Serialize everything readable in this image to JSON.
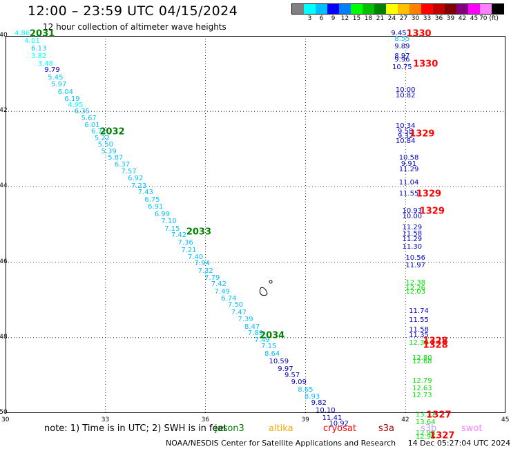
{
  "header": {
    "title": "12:00 – 23:59 UTC 04/15/2024",
    "subtitle": "12 hour collection of altimeter wave heights"
  },
  "colorbar": {
    "colors": [
      "#808080",
      "#00ffff",
      "#00bfff",
      "#0000ff",
      "#0080ff",
      "#00ff00",
      "#00c000",
      "#008000",
      "#ffff00",
      "#ffc000",
      "#ff8000",
      "#ff0000",
      "#c00000",
      "#800000",
      "#800080",
      "#ff00ff",
      "#ff80ff",
      "#000000"
    ],
    "labels": [
      "3",
      "6",
      "9",
      "12",
      "15",
      "18",
      "21",
      "24",
      "27",
      "30",
      "33",
      "36",
      "39",
      "42",
      "45",
      "70 (ft)"
    ]
  },
  "chart_data": {
    "type": "scatter",
    "title": "12:00 – 23:59 UTC 04/15/2024",
    "subtitle": "12 hour collection of altimeter wave heights",
    "xlim": [
      30,
      45
    ],
    "ylim": [
      -50,
      -40
    ],
    "x_ticks": [
      "30",
      "33",
      "36",
      "39",
      "42",
      "45"
    ],
    "y_ticks": [
      "-40",
      "-42",
      "-44",
      "-46",
      "-48",
      "-50"
    ],
    "grid": true,
    "series": [
      {
        "name": "jason3",
        "color": "#008000",
        "tracks": [
          {
            "label": "2031",
            "x": 31.1,
            "y": -39.95
          },
          {
            "label": "2032",
            "x": 33.2,
            "y": -42.55
          },
          {
            "label": "2033",
            "x": 35.8,
            "y": -45.2
          },
          {
            "label": "2034",
            "x": 38.0,
            "y": -47.95
          }
        ],
        "points": [
          {
            "x": 30.5,
            "y": -39.95,
            "v": "4.86",
            "c": "#00ffff"
          },
          {
            "x": 30.8,
            "y": -40.15,
            "v": "4.01",
            "c": "#00ffff"
          },
          {
            "x": 31.0,
            "y": -40.35,
            "v": "6.13",
            "c": "#00bfff"
          },
          {
            "x": 31.0,
            "y": -40.55,
            "v": "3.82",
            "c": "#00ffff"
          },
          {
            "x": 31.2,
            "y": -40.75,
            "v": "3.48",
            "c": "#00ffff"
          },
          {
            "x": 31.4,
            "y": -40.92,
            "v": "9.79",
            "c": "#0000c0"
          },
          {
            "x": 31.5,
            "y": -41.12,
            "v": "5.45",
            "c": "#00bfff"
          },
          {
            "x": 31.6,
            "y": -41.3,
            "v": "5.97",
            "c": "#00bfff"
          },
          {
            "x": 31.8,
            "y": -41.5,
            "v": "6.04",
            "c": "#00bfff"
          },
          {
            "x": 32.0,
            "y": -41.68,
            "v": "6.19",
            "c": "#00bfff"
          },
          {
            "x": 32.1,
            "y": -41.85,
            "v": "4.95",
            "c": "#00ffff"
          },
          {
            "x": 32.3,
            "y": -42.02,
            "v": "6.35",
            "c": "#00bfff"
          },
          {
            "x": 32.5,
            "y": -42.2,
            "v": "5.67",
            "c": "#00bfff"
          },
          {
            "x": 32.6,
            "y": -42.38,
            "v": "6.01",
            "c": "#00bfff"
          },
          {
            "x": 32.8,
            "y": -42.55,
            "v": "6.71",
            "c": "#00bfff"
          },
          {
            "x": 32.9,
            "y": -42.72,
            "v": "5.22",
            "c": "#00bfff"
          },
          {
            "x": 33.0,
            "y": -42.9,
            "v": "5.50",
            "c": "#00bfff"
          },
          {
            "x": 33.1,
            "y": -43.08,
            "v": "5.39",
            "c": "#00bfff"
          },
          {
            "x": 33.3,
            "y": -43.25,
            "v": "5.87",
            "c": "#00bfff"
          },
          {
            "x": 33.5,
            "y": -43.42,
            "v": "6.37",
            "c": "#00bfff"
          },
          {
            "x": 33.7,
            "y": -43.6,
            "v": "7.57",
            "c": "#00bfff"
          },
          {
            "x": 33.9,
            "y": -43.8,
            "v": "6.92",
            "c": "#00bfff"
          },
          {
            "x": 34.0,
            "y": -44.0,
            "v": "7.23",
            "c": "#00bfff"
          },
          {
            "x": 34.2,
            "y": -44.15,
            "v": "7.43",
            "c": "#00bfff"
          },
          {
            "x": 34.4,
            "y": -44.35,
            "v": "6.75",
            "c": "#00bfff"
          },
          {
            "x": 34.5,
            "y": -44.55,
            "v": "6.91",
            "c": "#00bfff"
          },
          {
            "x": 34.7,
            "y": -44.75,
            "v": "6.99",
            "c": "#00bfff"
          },
          {
            "x": 34.9,
            "y": -44.92,
            "v": "7.10",
            "c": "#00bfff"
          },
          {
            "x": 35.0,
            "y": -45.12,
            "v": "7.15",
            "c": "#00bfff"
          },
          {
            "x": 35.2,
            "y": -45.3,
            "v": "7.42",
            "c": "#00bfff"
          },
          {
            "x": 35.4,
            "y": -45.5,
            "v": "7.36",
            "c": "#00bfff"
          },
          {
            "x": 35.5,
            "y": -45.7,
            "v": "7.21",
            "c": "#00bfff"
          },
          {
            "x": 35.7,
            "y": -45.88,
            "v": "7.40",
            "c": "#00bfff"
          },
          {
            "x": 35.9,
            "y": -46.05,
            "v": "7.94",
            "c": "#00bfff"
          },
          {
            "x": 36.0,
            "y": -46.25,
            "v": "7.32",
            "c": "#00bfff"
          },
          {
            "x": 36.2,
            "y": -46.42,
            "v": "7.79",
            "c": "#00bfff"
          },
          {
            "x": 36.4,
            "y": -46.6,
            "v": "7.42",
            "c": "#00bfff"
          },
          {
            "x": 36.5,
            "y": -46.8,
            "v": "7.49",
            "c": "#00bfff"
          },
          {
            "x": 36.7,
            "y": -46.98,
            "v": "6.74",
            "c": "#00bfff"
          },
          {
            "x": 36.9,
            "y": -47.15,
            "v": "7.50",
            "c": "#00bfff"
          },
          {
            "x": 37.0,
            "y": -47.35,
            "v": "7.47",
            "c": "#00bfff"
          },
          {
            "x": 37.2,
            "y": -47.52,
            "v": "7.39",
            "c": "#00bfff"
          },
          {
            "x": 37.4,
            "y": -47.72,
            "v": "8.47",
            "c": "#00bfff"
          },
          {
            "x": 37.5,
            "y": -47.9,
            "v": "7.89",
            "c": "#00bfff"
          },
          {
            "x": 37.7,
            "y": -48.08,
            "v": "7.49",
            "c": "#00bfff"
          },
          {
            "x": 37.9,
            "y": -48.25,
            "v": "7.15",
            "c": "#00bfff"
          },
          {
            "x": 38.0,
            "y": -48.45,
            "v": "8.64",
            "c": "#00bfff"
          },
          {
            "x": 38.2,
            "y": -48.65,
            "v": "10.59",
            "c": "#0000c0"
          },
          {
            "x": 38.4,
            "y": -48.85,
            "v": "9.97",
            "c": "#0000c0"
          },
          {
            "x": 38.6,
            "y": -49.02,
            "v": "9.57",
            "c": "#0000c0"
          },
          {
            "x": 38.8,
            "y": -49.2,
            "v": "9.09",
            "c": "#0000c0"
          },
          {
            "x": 39.0,
            "y": -49.4,
            "v": "8.65",
            "c": "#00bfff"
          },
          {
            "x": 39.2,
            "y": -49.58,
            "v": "8.93",
            "c": "#00bfff"
          },
          {
            "x": 39.4,
            "y": -49.75,
            "v": "9.82",
            "c": "#0000c0"
          },
          {
            "x": 39.6,
            "y": -49.95,
            "v": "10.10",
            "c": "#0000c0"
          },
          {
            "x": 39.8,
            "y": -50.15,
            "v": "11.41",
            "c": "#0000c0"
          },
          {
            "x": 40.0,
            "y": -50.3,
            "v": "10.92",
            "c": "#0000c0"
          }
        ]
      },
      {
        "name": "cryosat",
        "color": "#ff0000",
        "tracks": [
          {
            "label": "1330",
            "x": 42.4,
            "y": -39.95
          },
          {
            "label": "1330",
            "x": 42.6,
            "y": -40.75
          },
          {
            "label": "1329",
            "x": 42.5,
            "y": -42.6
          },
          {
            "label": "1329",
            "x": 42.7,
            "y": -44.2
          },
          {
            "label": "1329",
            "x": 42.8,
            "y": -44.65
          },
          {
            "label": "1328",
            "x": 42.9,
            "y": -48.2
          },
          {
            "label": "1327",
            "x": 43.0,
            "y": -50.05
          },
          {
            "label": "1327",
            "x": 43.1,
            "y": -50.6
          },
          {
            "label": "1328",
            "x": 42.9,
            "y": -48.1
          }
        ],
        "points": [
          {
            "x": 41.8,
            "y": -39.95,
            "v": "9.45",
            "c": "#0000c0"
          },
          {
            "x": 41.9,
            "y": -40.1,
            "v": "8.55",
            "c": "#00bfff"
          },
          {
            "x": 41.9,
            "y": -40.3,
            "v": "9.89",
            "c": "#0000c0"
          },
          {
            "x": 41.9,
            "y": -40.55,
            "v": "8.97",
            "c": "#0000c0"
          },
          {
            "x": 41.9,
            "y": -40.65,
            "v": "9.96",
            "c": "#0000c0"
          },
          {
            "x": 41.9,
            "y": -40.85,
            "v": "10.75",
            "c": "#0000c0"
          },
          {
            "x": 42.0,
            "y": -41.45,
            "v": "10.00",
            "c": "#0000c0"
          },
          {
            "x": 42.0,
            "y": -41.6,
            "v": "10.82",
            "c": "#0000c0"
          },
          {
            "x": 42.0,
            "y": -42.4,
            "v": "10.34",
            "c": "#0000c0"
          },
          {
            "x": 42.0,
            "y": -42.55,
            "v": "9.58",
            "c": "#0000c0"
          },
          {
            "x": 42.0,
            "y": -42.68,
            "v": "9.32",
            "c": "#0000c0"
          },
          {
            "x": 42.0,
            "y": -42.8,
            "v": "10.84",
            "c": "#0000c0"
          },
          {
            "x": 42.1,
            "y": -43.25,
            "v": "10.58",
            "c": "#0000c0"
          },
          {
            "x": 42.1,
            "y": -43.4,
            "v": "9.91",
            "c": "#0000c0"
          },
          {
            "x": 42.1,
            "y": -43.55,
            "v": "11.29",
            "c": "#0000c0"
          },
          {
            "x": 42.1,
            "y": -43.9,
            "v": "11.04",
            "c": "#0000c0"
          },
          {
            "x": 42.1,
            "y": -44.2,
            "v": "11.55",
            "c": "#0000c0"
          },
          {
            "x": 42.2,
            "y": -44.65,
            "v": "10.93",
            "c": "#0000c0"
          },
          {
            "x": 42.2,
            "y": -44.8,
            "v": "10.00",
            "c": "#0000c0"
          },
          {
            "x": 42.2,
            "y": -45.1,
            "v": "11.29",
            "c": "#0000c0"
          },
          {
            "x": 42.2,
            "y": -45.25,
            "v": "11.58",
            "c": "#0000c0"
          },
          {
            "x": 42.2,
            "y": -45.4,
            "v": "11.29",
            "c": "#0000c0"
          },
          {
            "x": 42.2,
            "y": -45.6,
            "v": "11.30",
            "c": "#0000c0"
          },
          {
            "x": 42.3,
            "y": -45.9,
            "v": "10.56",
            "c": "#0000c0"
          },
          {
            "x": 42.3,
            "y": -46.1,
            "v": "11.97",
            "c": "#0000c0"
          },
          {
            "x": 42.3,
            "y": -46.55,
            "v": "12.38",
            "c": "#00e000"
          },
          {
            "x": 42.3,
            "y": -46.7,
            "v": "12.26",
            "c": "#00e000"
          },
          {
            "x": 42.3,
            "y": -46.8,
            "v": "12.03",
            "c": "#00e000"
          },
          {
            "x": 42.4,
            "y": -47.3,
            "v": "11.74",
            "c": "#0000c0"
          },
          {
            "x": 42.4,
            "y": -47.55,
            "v": "11.55",
            "c": "#0000c0"
          },
          {
            "x": 42.4,
            "y": -47.8,
            "v": "11.58",
            "c": "#0000c0"
          },
          {
            "x": 42.4,
            "y": -47.95,
            "v": "11.35",
            "c": "#0000c0"
          },
          {
            "x": 42.4,
            "y": -48.15,
            "v": "12.39",
            "c": "#00e000"
          },
          {
            "x": 42.5,
            "y": -48.55,
            "v": "12.80",
            "c": "#00e000"
          },
          {
            "x": 42.5,
            "y": -48.65,
            "v": "12.68",
            "c": "#00e000"
          },
          {
            "x": 42.5,
            "y": -49.15,
            "v": "12.79",
            "c": "#00e000"
          },
          {
            "x": 42.5,
            "y": -49.35,
            "v": "12.63",
            "c": "#00e000"
          },
          {
            "x": 42.5,
            "y": -49.55,
            "v": "12.73",
            "c": "#00e000"
          },
          {
            "x": 42.6,
            "y": -50.05,
            "v": "13.17",
            "c": "#00e000"
          },
          {
            "x": 42.6,
            "y": -50.25,
            "v": "13.64",
            "c": "#00e000"
          },
          {
            "x": 42.6,
            "y": -50.55,
            "v": "12.98",
            "c": "#00e000"
          },
          {
            "x": 42.6,
            "y": -50.65,
            "v": "12.96",
            "c": "#00e000"
          }
        ]
      }
    ]
  },
  "legend": {
    "note": "note:  1) Time is in UTC; 2) SWH is in feet",
    "items": [
      {
        "label": "jason3",
        "color": "#008000"
      },
      {
        "label": "altika",
        "color": "#ffa500"
      },
      {
        "label": "cryosat",
        "color": "#ff0000"
      },
      {
        "label": "s3a",
        "color": "#a00000"
      },
      {
        "label": "s3b",
        "color": "#c0a0ff"
      },
      {
        "label": "swot",
        "color": "#ff80ff"
      }
    ]
  },
  "footer": {
    "credit": "NOAA/NESDIS Center for Satellite Applications and Research",
    "timestamp": "14 Dec 05:27:04 UTC 2024"
  }
}
